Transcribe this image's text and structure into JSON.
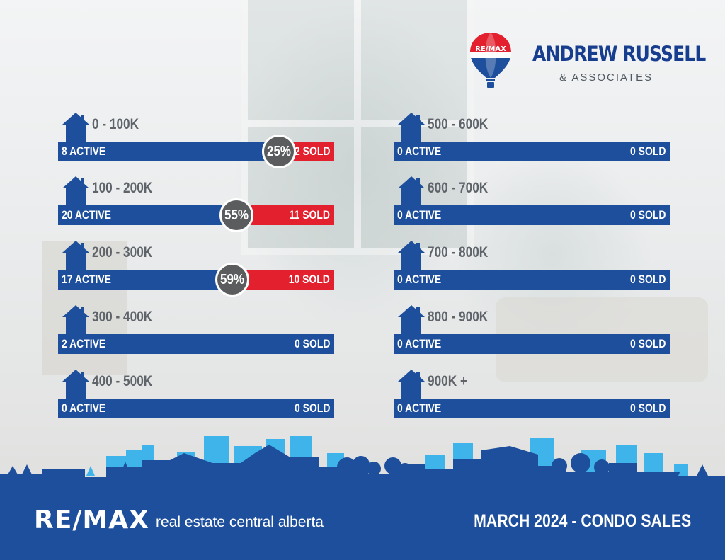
{
  "brand": {
    "balloon_text": "RE/MAX",
    "name": "ANDREW RUSSELL",
    "subtitle": "& ASSOCIATES"
  },
  "colors": {
    "active": "#1e4f9c",
    "sold": "#e3202e",
    "badge": "#5a5c5e",
    "skyline_light": "#3fb4ea",
    "skyline_dark": "#1e4f9c"
  },
  "chart_data": {
    "type": "bar",
    "title": "",
    "xlabel": "",
    "ylabel": "",
    "ranges": [
      {
        "label": "0 - 100K",
        "active": 8,
        "sold": 2,
        "active_text": "8 ACTIVE",
        "sold_text": "2 SOLD",
        "percent_text": "25%"
      },
      {
        "label": "100 - 200K",
        "active": 20,
        "sold": 11,
        "active_text": "20 ACTIVE",
        "sold_text": "11 SOLD",
        "percent_text": "55%"
      },
      {
        "label": "200 - 300K",
        "active": 17,
        "sold": 10,
        "active_text": "17 ACTIVE",
        "sold_text": "10 SOLD",
        "percent_text": "59%"
      },
      {
        "label": "300 - 400K",
        "active": 2,
        "sold": 0,
        "active_text": "2 ACTIVE",
        "sold_text": "0 SOLD",
        "percent_text": ""
      },
      {
        "label": "400 - 500K",
        "active": 0,
        "sold": 0,
        "active_text": "0 ACTIVE",
        "sold_text": "0 SOLD",
        "percent_text": ""
      },
      {
        "label": "500 - 600K",
        "active": 0,
        "sold": 0,
        "active_text": "0 ACTIVE",
        "sold_text": "0 SOLD",
        "percent_text": ""
      },
      {
        "label": "600 - 700K",
        "active": 0,
        "sold": 0,
        "active_text": "0 ACTIVE",
        "sold_text": "0 SOLD",
        "percent_text": ""
      },
      {
        "label": "700 - 800K",
        "active": 0,
        "sold": 0,
        "active_text": "0 ACTIVE",
        "sold_text": "0 SOLD",
        "percent_text": ""
      },
      {
        "label": "800 - 900K",
        "active": 0,
        "sold": 0,
        "active_text": "0 ACTIVE",
        "sold_text": "0 SOLD",
        "percent_text": ""
      },
      {
        "label": "900K +",
        "active": 0,
        "sold": 0,
        "active_text": "0 ACTIVE",
        "sold_text": "0 SOLD",
        "percent_text": ""
      }
    ]
  },
  "footer": {
    "logo": "RE/MAX",
    "tagline": "real estate central alberta",
    "period": "MARCH 2024 - CONDO SALES"
  }
}
